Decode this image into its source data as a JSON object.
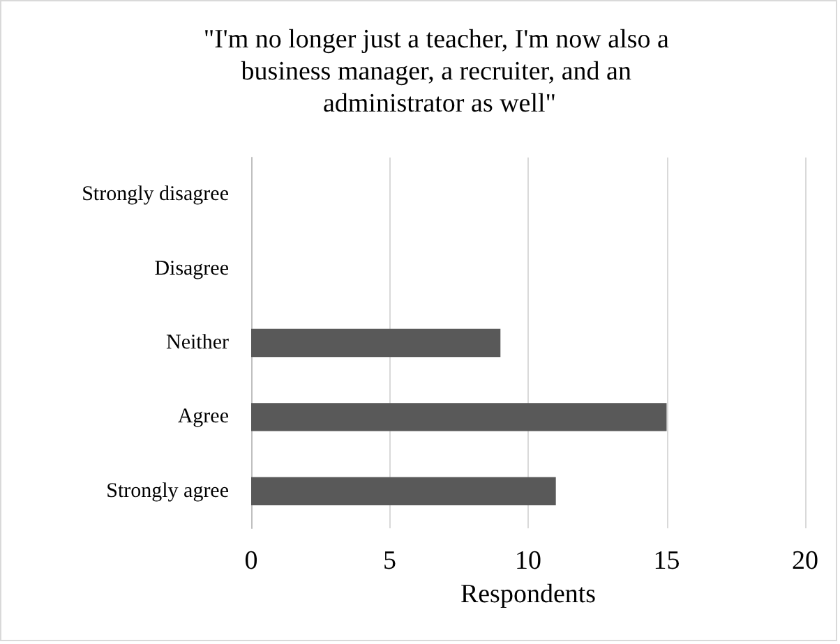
{
  "chart_data": {
    "type": "bar",
    "orientation": "horizontal",
    "title": "\"I'm no longer just a teacher, I'm now also a business manager, a recruiter, and an administrator as well\"",
    "xlabel": "Respondents",
    "categories": [
      "Strongly disagree",
      "Disagree",
      "Neither",
      "Agree",
      "Strongly agree"
    ],
    "values": [
      0,
      0,
      9,
      15,
      11
    ],
    "color": "#595959",
    "xlim": [
      0,
      20
    ],
    "xticks": [
      0,
      5,
      10,
      15,
      20
    ],
    "grid": "x"
  }
}
